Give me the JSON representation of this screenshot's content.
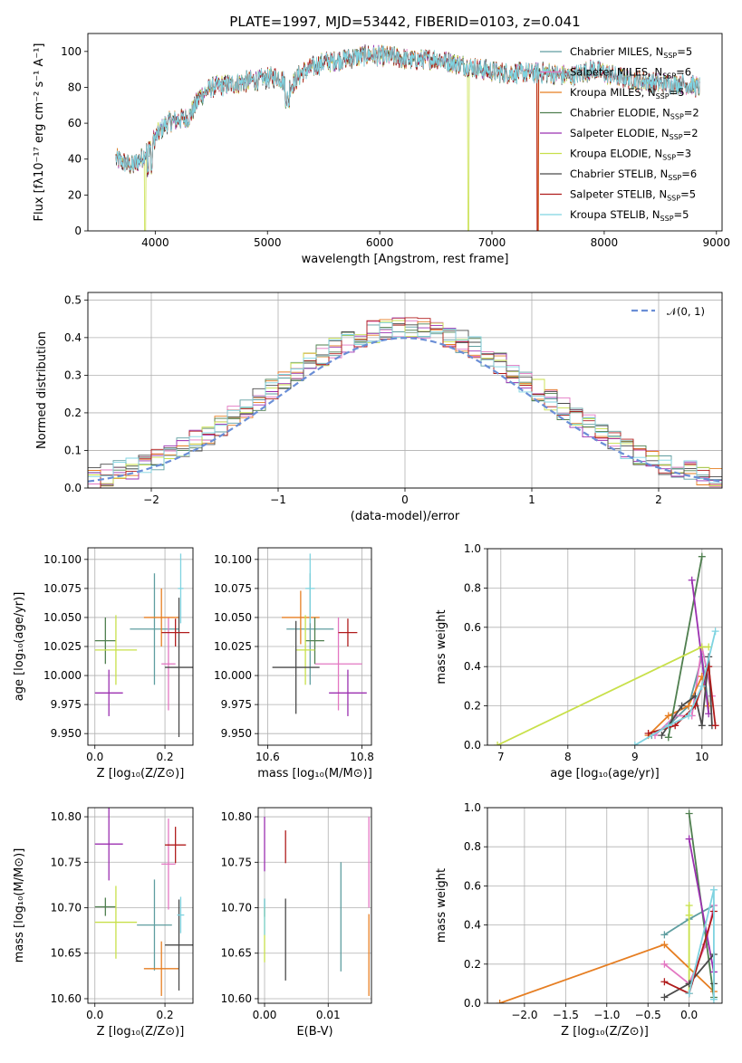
{
  "figure": {
    "title": "PLATE=1997, MJD=53442, FIBERID=0103, z=0.041"
  },
  "models": [
    {
      "name": "Chabrier MILES",
      "nssp": "5",
      "color": "#5f9ea0"
    },
    {
      "name": "Salpeter MILES",
      "nssp": "6",
      "color": "#e377c2"
    },
    {
      "name": "Kroupa MILES",
      "nssp": "5",
      "color": "#e67e22"
    },
    {
      "name": "Chabrier ELODIE",
      "nssp": "2",
      "color": "#4f7f4f"
    },
    {
      "name": "Salpeter ELODIE",
      "nssp": "2",
      "color": "#9b30b0"
    },
    {
      "name": "Kroupa ELODIE",
      "nssp": "3",
      "color": "#c8e04a"
    },
    {
      "name": "Chabrier STELIB",
      "nssp": "6",
      "color": "#4a4a4a"
    },
    {
      "name": "Salpeter STELIB",
      "nssp": "5",
      "color": "#b01c1c"
    },
    {
      "name": "Kroupa STELIB",
      "nssp": "5",
      "color": "#7fd3e0"
    }
  ],
  "chart_data": [
    {
      "type": "line",
      "id": "spectrum",
      "xlabel": "wavelength [Angstrom, rest frame]",
      "ylabel": "Flux [fλ10⁻¹⁷ erg cm⁻² s⁻¹ A⁻¹]",
      "xlim": [
        3400,
        9050
      ],
      "ylim": [
        0,
        110
      ],
      "xticks": [
        4000,
        5000,
        6000,
        7000,
        8000,
        9000
      ],
      "yticks": [
        0,
        20,
        40,
        60,
        80,
        100
      ],
      "continuum": [
        [
          3650,
          40
        ],
        [
          3800,
          36
        ],
        [
          3900,
          42
        ],
        [
          3950,
          48
        ],
        [
          4000,
          52
        ],
        [
          4100,
          60
        ],
        [
          4200,
          62
        ],
        [
          4300,
          63
        ],
        [
          4400,
          75
        ],
        [
          4500,
          80
        ],
        [
          4700,
          82
        ],
        [
          4900,
          84
        ],
        [
          5100,
          86
        ],
        [
          5200,
          80
        ],
        [
          5300,
          88
        ],
        [
          5500,
          94
        ],
        [
          5700,
          96
        ],
        [
          5900,
          98
        ],
        [
          6100,
          97
        ],
        [
          6300,
          95
        ],
        [
          6500,
          96
        ],
        [
          6700,
          93
        ],
        [
          6900,
          90
        ],
        [
          7100,
          88
        ],
        [
          7300,
          88
        ],
        [
          7500,
          88
        ],
        [
          7700,
          86
        ],
        [
          7800,
          88
        ],
        [
          7900,
          90
        ],
        [
          8100,
          86
        ],
        [
          8300,
          84
        ],
        [
          8500,
          82
        ],
        [
          8700,
          82
        ],
        [
          8850,
          80
        ]
      ]
    },
    {
      "type": "bar",
      "id": "residuals",
      "xlabel": "(data-model)/error",
      "ylabel": "Normed distribution",
      "xlim": [
        -2.5,
        2.5
      ],
      "ylim": [
        0,
        0.52
      ],
      "xticks": [
        -2,
        -1,
        0,
        1,
        2
      ],
      "yticks": [
        0.0,
        0.1,
        0.2,
        0.3,
        0.4,
        0.5
      ],
      "reference_label": "𝒩(0, 1)",
      "bin_width": 0.1
    },
    {
      "type": "scatter",
      "id": "age-vs-z",
      "xlabel": "Z [log₁₀(Z/Z⊙)]",
      "ylabel": "age  [log₁₀(age/yr)]",
      "xlim": [
        -0.02,
        0.28
      ],
      "ylim": [
        9.94,
        10.11
      ],
      "xticks": [
        0.0,
        0.2
      ],
      "yticks": [
        9.95,
        9.975,
        10.0,
        10.025,
        10.05,
        10.075,
        10.1
      ],
      "points": [
        {
          "model": 0,
          "x": 0.17,
          "y": 10.04,
          "dx": 0.07,
          "dy": 0.048
        },
        {
          "model": 1,
          "x": 0.21,
          "y": 10.01,
          "dx": 0.02,
          "dy": 0.04
        },
        {
          "model": 2,
          "x": 0.19,
          "y": 10.05,
          "dx": 0.05,
          "dy": 0.025
        },
        {
          "model": 3,
          "x": 0.03,
          "y": 10.03,
          "dx": 0.03,
          "dy": 0.02
        },
        {
          "model": 4,
          "x": 0.04,
          "y": 9.985,
          "dx": 0.04,
          "dy": 0.02
        },
        {
          "model": 5,
          "x": 0.06,
          "y": 10.022,
          "dx": 0.06,
          "dy": 0.03
        },
        {
          "model": 6,
          "x": 0.24,
          "y": 10.007,
          "dx": 0.04,
          "dy": 0.06
        },
        {
          "model": 7,
          "x": 0.23,
          "y": 10.037,
          "dx": 0.04,
          "dy": 0.012
        },
        {
          "model": 8,
          "x": 0.245,
          "y": 10.075,
          "dx": 0.008,
          "dy": 0.03
        }
      ]
    },
    {
      "type": "scatter",
      "id": "age-vs-mass",
      "xlabel": "mass [log₁₀(M/M⊙)]",
      "ylabel": "",
      "xlim": [
        10.58,
        10.82
      ],
      "ylim": [
        9.94,
        10.11
      ],
      "xticks": [
        10.6,
        10.8
      ],
      "yticks": [
        9.95,
        9.975,
        10.0,
        10.025,
        10.05,
        10.075,
        10.1
      ],
      "points": [
        {
          "model": 0,
          "x": 10.69,
          "y": 10.04,
          "dx": 0.05,
          "dy": 0.048
        },
        {
          "model": 1,
          "x": 10.75,
          "y": 10.01,
          "dx": 0.05,
          "dy": 0.04
        },
        {
          "model": 2,
          "x": 10.67,
          "y": 10.05,
          "dx": 0.04,
          "dy": 0.023
        },
        {
          "model": 3,
          "x": 10.7,
          "y": 10.03,
          "dx": 0.02,
          "dy": 0.02
        },
        {
          "model": 4,
          "x": 10.77,
          "y": 9.985,
          "dx": 0.04,
          "dy": 0.02
        },
        {
          "model": 5,
          "x": 10.68,
          "y": 10.022,
          "dx": 0.02,
          "dy": 0.03
        },
        {
          "model": 6,
          "x": 10.66,
          "y": 10.007,
          "dx": 0.05,
          "dy": 0.04
        },
        {
          "model": 7,
          "x": 10.77,
          "y": 10.037,
          "dx": 0.02,
          "dy": 0.012
        },
        {
          "model": 8,
          "x": 10.69,
          "y": 10.075,
          "dx": 0.01,
          "dy": 0.03
        }
      ]
    },
    {
      "type": "line",
      "id": "weight-vs-age",
      "xlabel": "age  [log₁₀(age/yr)]",
      "ylabel": "mass weight",
      "xlim": [
        6.8,
        10.3
      ],
      "ylim": [
        0,
        1.0
      ],
      "xticks": [
        7,
        8,
        9,
        10
      ],
      "yticks": [
        0.0,
        0.2,
        0.4,
        0.6,
        0.8,
        1.0
      ],
      "series": [
        {
          "model": 0,
          "x": [
            9.25,
            9.5,
            9.8,
            10.0,
            10.1
          ],
          "y": [
            0.05,
            0.1,
            0.2,
            0.45,
            0.2
          ]
        },
        {
          "model": 1,
          "x": [
            9.3,
            9.6,
            9.85,
            10.0,
            10.15
          ],
          "y": [
            0.05,
            0.15,
            0.15,
            0.5,
            0.25
          ]
        },
        {
          "model": 2,
          "x": [
            9.2,
            9.5,
            9.8,
            10.0,
            10.1
          ],
          "y": [
            0.05,
            0.15,
            0.2,
            0.35,
            0.2
          ]
        },
        {
          "model": 3,
          "x": [
            9.5,
            10.0
          ],
          "y": [
            0.04,
            0.96
          ]
        },
        {
          "model": 4,
          "x": [
            9.85,
            10.1
          ],
          "y": [
            0.84,
            0.16
          ]
        },
        {
          "model": 5,
          "x": [
            6.95,
            10.0,
            10.1
          ],
          "y": [
            0.0,
            0.5,
            0.5
          ]
        },
        {
          "model": 6,
          "x": [
            9.4,
            9.7,
            9.9,
            10.0,
            10.1,
            10.15
          ],
          "y": [
            0.05,
            0.2,
            0.25,
            0.1,
            0.45,
            0.1
          ]
        },
        {
          "model": 7,
          "x": [
            9.2,
            9.6,
            9.9,
            10.1,
            10.2
          ],
          "y": [
            0.06,
            0.1,
            0.2,
            0.4,
            0.1
          ]
        },
        {
          "model": 8,
          "x": [
            9.0,
            9.5,
            9.8,
            10.0,
            10.2
          ],
          "y": [
            0.0,
            0.1,
            0.15,
            0.3,
            0.58
          ]
        }
      ]
    },
    {
      "type": "scatter",
      "id": "mass-vs-z",
      "xlabel": "Z [log₁₀(Z/Z⊙)]",
      "ylabel": "mass [log₁₀(M/M⊙)]",
      "xlim": [
        -0.02,
        0.28
      ],
      "ylim": [
        10.595,
        10.81
      ],
      "xticks": [
        0.0,
        0.2
      ],
      "yticks": [
        10.6,
        10.65,
        10.7,
        10.75,
        10.8
      ],
      "points": [
        {
          "model": 0,
          "x": 0.17,
          "y": 10.681,
          "dx": 0.05,
          "dy": 0.05
        },
        {
          "model": 1,
          "x": 0.21,
          "y": 10.748,
          "dx": 0.02,
          "dy": 0.05
        },
        {
          "model": 2,
          "x": 0.19,
          "y": 10.633,
          "dx": 0.05,
          "dy": 0.03
        },
        {
          "model": 3,
          "x": 0.03,
          "y": 10.701,
          "dx": 0.03,
          "dy": 0.01
        },
        {
          "model": 4,
          "x": 0.04,
          "y": 10.77,
          "dx": 0.04,
          "dy": 0.04
        },
        {
          "model": 5,
          "x": 0.06,
          "y": 10.684,
          "dx": 0.06,
          "dy": 0.04
        },
        {
          "model": 6,
          "x": 0.24,
          "y": 10.659,
          "dx": 0.04,
          "dy": 0.05
        },
        {
          "model": 7,
          "x": 0.23,
          "y": 10.769,
          "dx": 0.03,
          "dy": 0.02
        },
        {
          "model": 8,
          "x": 0.245,
          "y": 10.692,
          "dx": 0.01,
          "dy": 0.02
        }
      ]
    },
    {
      "type": "scatter",
      "id": "mass-vs-ebv",
      "xlabel": "E(B-V)",
      "ylabel": "",
      "xlim": [
        -0.001,
        0.0168
      ],
      "ylim": [
        10.595,
        10.81
      ],
      "xticks": [
        0.0,
        0.01
      ],
      "yticks": [
        10.6,
        10.65,
        10.7,
        10.75,
        10.8
      ],
      "points": [
        {
          "model": 0,
          "x": 0.012,
          "y": 10.69,
          "dx": 0,
          "dy": 0.06
        },
        {
          "model": 1,
          "x": 0.0164,
          "y": 10.75,
          "dx": 0,
          "dy": 0.05
        },
        {
          "model": 2,
          "x": 0.0164,
          "y": 10.648,
          "dx": 0,
          "dy": 0.045
        },
        {
          "model": 3,
          "x": 0.0,
          "y": 10.7,
          "dx": 0,
          "dy": 0.01
        },
        {
          "model": 4,
          "x": 0.0,
          "y": 10.77,
          "dx": 0,
          "dy": 0.03
        },
        {
          "model": 5,
          "x": 0.0,
          "y": 10.67,
          "dx": 0,
          "dy": 0.03
        },
        {
          "model": 6,
          "x": 0.0033,
          "y": 10.665,
          "dx": 0,
          "dy": 0.045
        },
        {
          "model": 7,
          "x": 0.0033,
          "y": 10.767,
          "dx": 0,
          "dy": 0.018
        },
        {
          "model": 8,
          "x": 0.0,
          "y": 10.69,
          "dx": 0,
          "dy": 0.02
        }
      ]
    },
    {
      "type": "line",
      "id": "weight-vs-z",
      "xlabel": "Z [log₁₀(Z/Z⊙)]",
      "ylabel": "mass weight",
      "xlim": [
        -2.45,
        0.4
      ],
      "ylim": [
        0,
        1.0
      ],
      "xticks": [
        -2.0,
        -1.5,
        -1.0,
        -0.5,
        0.0
      ],
      "yticks": [
        0.0,
        0.2,
        0.4,
        0.6,
        0.8,
        1.0
      ],
      "series": [
        {
          "model": 0,
          "x": [
            -0.3,
            0.0,
            0.3
          ],
          "y": [
            0.35,
            0.43,
            0.5
          ]
        },
        {
          "model": 1,
          "x": [
            -0.3,
            0.0,
            0.2,
            0.3
          ],
          "y": [
            0.2,
            0.1,
            0.3,
            0.5
          ]
        },
        {
          "model": 2,
          "x": [
            -2.3,
            -0.3,
            0.3
          ],
          "y": [
            0.0,
            0.3,
            0.06
          ]
        },
        {
          "model": 3,
          "x": [
            0.0,
            0.3
          ],
          "y": [
            0.97,
            0.03
          ]
        },
        {
          "model": 4,
          "x": [
            0.0,
            0.3
          ],
          "y": [
            0.84,
            0.16
          ]
        },
        {
          "model": 5,
          "x": [
            0.0,
            0.0,
            0.0
          ],
          "y": [
            0.5,
            0.45,
            0.05
          ]
        },
        {
          "model": 6,
          "x": [
            -0.3,
            0.0,
            0.3,
            0.3
          ],
          "y": [
            0.03,
            0.1,
            0.25,
            0.1
          ]
        },
        {
          "model": 7,
          "x": [
            -0.3,
            0.0,
            0.3
          ],
          "y": [
            0.11,
            0.05,
            0.47
          ]
        },
        {
          "model": 8,
          "x": [
            0.0,
            0.3,
            0.3
          ],
          "y": [
            0.05,
            0.58,
            0.02
          ]
        }
      ]
    }
  ]
}
